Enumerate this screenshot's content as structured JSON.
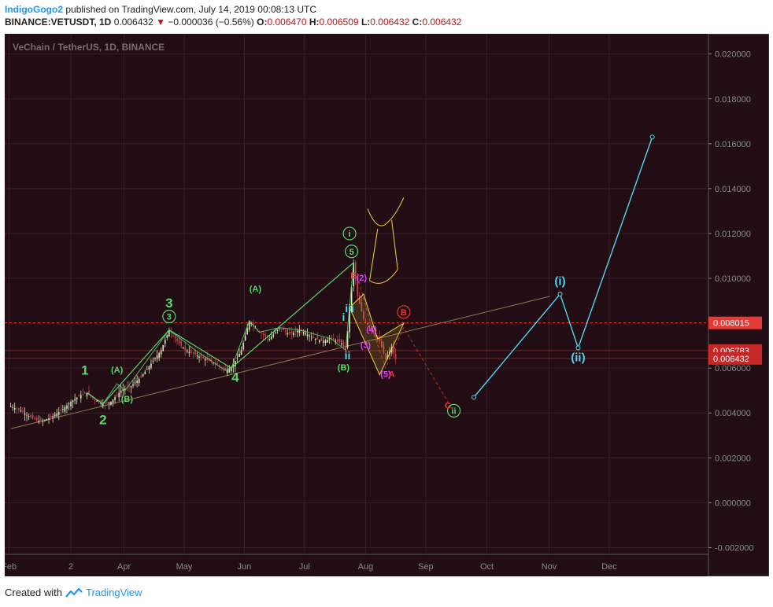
{
  "header": {
    "author": "IndigoGogo2",
    "published": "published on TradingView.com, July 14, 2019 00:08:13 UTC",
    "symbol": "BINANCE:VETUSDT, 1D",
    "last": "0.006432",
    "change": "−0.000036 (−0.56%)",
    "o_label": "O:",
    "o": "0.006470",
    "h_label": "H:",
    "h": "0.006509",
    "l_label": "L:",
    "l": "0.006432",
    "c_label": "C:",
    "c": "0.006432"
  },
  "footer": {
    "created": "Created with",
    "brand": "TradingView"
  },
  "colors": {
    "bg": "#220d14",
    "axis_bg": "#220d14",
    "grid": "#3a2028",
    "up": "#d9e7b9",
    "down": "#c2414a",
    "wave": "#58d868",
    "cyan": "#4fd7ee",
    "yellow": "#f2d23a",
    "price_red": "#e53935",
    "trend": "#8a7a52"
  },
  "chart_data": {
    "type": "line",
    "title": "VeChain / TetherUS, 1D, BINANCE",
    "xlabel": "",
    "ylabel": "",
    "ylim": [
      -0.0023,
      0.0209
    ],
    "x_ticks": [
      "Feb",
      "2",
      "Apr",
      "May",
      "Jun",
      "Jul",
      "Aug",
      "Sep",
      "Oct",
      "Nov",
      "Dec"
    ],
    "y_ticks": [
      "0.020000",
      "0.018000",
      "0.016000",
      "0.014000",
      "0.012000",
      "0.010000",
      "0.008000",
      "0.006000",
      "0.004000",
      "0.002000",
      "0.000000",
      "-0.002000"
    ],
    "y_tick_values": [
      0.02,
      0.018,
      0.016,
      0.014,
      0.012,
      0.01,
      0.008,
      0.006,
      0.004,
      0.002,
      0.0,
      -0.002
    ],
    "price_labels": [
      {
        "value": 0.008015,
        "label": "0.008015",
        "color": "#e53935"
      },
      {
        "value": 0.006783,
        "label": "0.006783",
        "color": "#c62828"
      },
      {
        "value": 0.006432,
        "label": "0.006432",
        "color": "#c62828"
      }
    ],
    "price_path": [
      [
        0,
        0.0043
      ],
      [
        5,
        0.0041
      ],
      [
        10,
        0.0038
      ],
      [
        15,
        0.0036
      ],
      [
        20,
        0.0038
      ],
      [
        25,
        0.0041
      ],
      [
        30,
        0.0045
      ],
      [
        35,
        0.0048
      ],
      [
        38,
        0.0049
      ],
      [
        42,
        0.0046
      ],
      [
        46,
        0.0044
      ],
      [
        50,
        0.0045
      ],
      [
        55,
        0.005
      ],
      [
        60,
        0.0052
      ],
      [
        65,
        0.0056
      ],
      [
        70,
        0.0062
      ],
      [
        75,
        0.0068
      ],
      [
        79,
        0.0077
      ],
      [
        83,
        0.0072
      ],
      [
        87,
        0.0068
      ],
      [
        92,
        0.0066
      ],
      [
        97,
        0.0064
      ],
      [
        102,
        0.0062
      ],
      [
        107,
        0.0059
      ],
      [
        110,
        0.006
      ],
      [
        115,
        0.0068
      ],
      [
        119,
        0.0081
      ],
      [
        124,
        0.0076
      ],
      [
        129,
        0.0073
      ],
      [
        134,
        0.0078
      ],
      [
        139,
        0.0075
      ],
      [
        144,
        0.0077
      ],
      [
        150,
        0.0074
      ],
      [
        155,
        0.0072
      ],
      [
        160,
        0.0073
      ],
      [
        165,
        0.0071
      ],
      [
        167,
        0.0068
      ],
      [
        169,
        0.0085
      ],
      [
        171,
        0.0107
      ],
      [
        173,
        0.0092
      ],
      [
        176,
        0.0082
      ],
      [
        180,
        0.0077
      ],
      [
        184,
        0.0072
      ],
      [
        187,
        0.0064
      ],
      [
        190,
        0.0069
      ],
      [
        192,
        0.0064
      ]
    ],
    "wave_green": [
      [
        38,
        0.0049
      ],
      [
        46,
        0.0044
      ],
      [
        79,
        0.0077
      ],
      [
        110,
        0.006
      ],
      [
        171,
        0.0107
      ]
    ],
    "wave_green_sub": [
      [
        [
          46,
          0.0044
        ],
        [
          53,
          0.0053
        ],
        [
          57,
          0.005
        ],
        [
          79,
          0.0077
        ]
      ],
      [
        [
          79,
          0.0077
        ],
        [
          92,
          0.0068
        ],
        [
          107,
          0.0059
        ],
        [
          110,
          0.006
        ]
      ],
      [
        [
          110,
          0.006
        ],
        [
          119,
          0.0081
        ],
        [
          124,
          0.0076
        ],
        [
          134,
          0.0078
        ],
        [
          144,
          0.0077
        ],
        [
          160,
          0.0073
        ],
        [
          167,
          0.0068
        ],
        [
          171,
          0.0107
        ]
      ]
    ],
    "trendline": [
      [
        0,
        0.0033
      ],
      [
        269,
        0.0092
      ]
    ],
    "projection_cyan": [
      [
        231,
        0.0047
      ],
      [
        274,
        0.0093
      ],
      [
        283,
        0.0069
      ],
      [
        320,
        0.0163
      ]
    ],
    "projection_red": [
      [
        173,
        0.0101
      ],
      [
        180,
        0.0078
      ],
      [
        187,
        0.006
      ],
      [
        196,
        0.0078
      ],
      [
        220,
        0.0042
      ]
    ],
    "labels": [
      {
        "text": "1",
        "x": 37,
        "y": 0.0057,
        "color": "#58d868",
        "size": 17
      },
      {
        "text": "2",
        "x": 46,
        "y": 0.0035,
        "color": "#58d868",
        "size": 17
      },
      {
        "text": "3",
        "x": 79,
        "y": 0.0087,
        "color": "#58d868",
        "size": 17
      },
      {
        "text": "4",
        "x": 112,
        "y": 0.0054,
        "color": "#58d868",
        "size": 17
      },
      {
        "text": "(A)",
        "x": 53,
        "y": 0.0058,
        "color": "#58d868",
        "size": 11
      },
      {
        "text": "(B)",
        "x": 58,
        "y": 0.0045,
        "color": "#58d868",
        "size": 11
      },
      {
        "text": "(A)",
        "x": 122,
        "y": 0.0094,
        "color": "#58d868",
        "size": 11
      },
      {
        "text": "(B)",
        "x": 166,
        "y": 0.0059,
        "color": "#58d868",
        "size": 11
      },
      {
        "text": "(i)",
        "x": 274,
        "y": 0.0097,
        "color": "#4fd7ee",
        "size": 15
      },
      {
        "text": "(ii)",
        "x": 283,
        "y": 0.0063,
        "color": "#4fd7ee",
        "size": 15
      },
      {
        "text": "ii",
        "x": 168,
        "y": 0.0064,
        "color": "#4fd7ee",
        "size": 14
      },
      {
        "text": "iii",
        "x": 169,
        "y": 0.0085,
        "color": "#4fd7ee",
        "size": 14
      },
      {
        "text": "i",
        "x": 166,
        "y": 0.0081,
        "color": "#4fd7ee",
        "size": 14
      },
      {
        "text": "(2)",
        "x": 175,
        "y": 0.0099,
        "color": "#e040fb",
        "size": 11
      },
      {
        "text": "(3)",
        "x": 177,
        "y": 0.0069,
        "color": "#e040fb",
        "size": 11
      },
      {
        "text": "(4)",
        "x": 180,
        "y": 0.0076,
        "color": "#e040fb",
        "size": 11
      },
      {
        "text": "(5)",
        "x": 187,
        "y": 0.0056,
        "color": "#e040fb",
        "size": 11
      },
      {
        "text": "B",
        "x": 171,
        "y": 0.01,
        "color": "#e53935",
        "size": 11
      },
      {
        "text": "A",
        "x": 190,
        "y": 0.0056,
        "color": "#e53935",
        "size": 11
      },
      {
        "text": "C",
        "x": 218,
        "y": 0.0042,
        "color": "#e53935",
        "size": 11
      }
    ],
    "circle_labels": [
      {
        "text": "i",
        "x": 169,
        "y": 0.012,
        "color": "#58d868"
      },
      {
        "text": "ii",
        "x": 221,
        "y": 0.0041,
        "color": "#58d868"
      },
      {
        "text": "B",
        "x": 196,
        "y": 0.0085,
        "color": "#e53935"
      },
      {
        "text": "5",
        "x": 170,
        "y": 0.0112,
        "color": "#58d868"
      },
      {
        "text": "3",
        "x": 79,
        "y": 0.0083,
        "color": "#58d868"
      }
    ],
    "x_range": [
      -3,
      348
    ]
  }
}
